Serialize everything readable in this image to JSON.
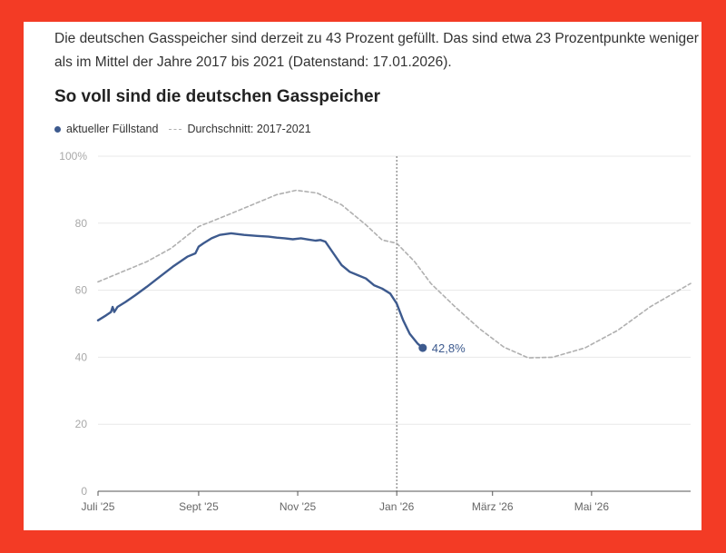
{
  "intro_text": "Die deutschen Gasspeicher sind derzeit zu 43 Prozent gefüllt. Das sind etwa 23 Prozentpunkte weniger als im Mittel der Jahre 2017 bis 2021 (Datenstand: 17.01.2026).",
  "colors": {
    "background": "#f33b25",
    "current": "#3d5a8e",
    "average": "#b0b0b0",
    "grid": "#e8e8e8"
  },
  "chart_data": {
    "type": "line",
    "title": "So voll sind die deutschen Gasspeicher",
    "xlabel": "",
    "ylabel": "",
    "ylim": [
      0,
      100
    ],
    "xlim_days": [
      0,
      365
    ],
    "x_unit": "days since 1 July 2025",
    "yticks": [
      {
        "value": 0,
        "label": "0"
      },
      {
        "value": 20,
        "label": "20"
      },
      {
        "value": 40,
        "label": "40"
      },
      {
        "value": 60,
        "label": "60"
      },
      {
        "value": 80,
        "label": "80"
      },
      {
        "value": 100,
        "label": "100%"
      }
    ],
    "xticks": [
      {
        "value": 0,
        "label": "Juli '25"
      },
      {
        "value": 62,
        "label": "Sept '25"
      },
      {
        "value": 123,
        "label": "Nov '25"
      },
      {
        "value": 184,
        "label": "Jan '26"
      },
      {
        "value": 243,
        "label": "März '26"
      },
      {
        "value": 304,
        "label": "Mai '26"
      }
    ],
    "reference_line_x": 184,
    "series": [
      {
        "name": "aktueller Füllstand",
        "style": "solid",
        "x": [
          0,
          5,
          8,
          9,
          10,
          12,
          17,
          23,
          30,
          38,
          46,
          55,
          60,
          62,
          65,
          70,
          75,
          82,
          90,
          98,
          105,
          110,
          115,
          120,
          125,
          130,
          134,
          137,
          140,
          145,
          150,
          155,
          160,
          165,
          170,
          175,
          180,
          184,
          188,
          192,
          197,
          200
        ],
        "values": [
          51,
          52.5,
          53.5,
          55,
          53.5,
          55,
          56.5,
          58.5,
          61,
          64,
          67,
          70,
          71,
          73,
          74,
          75.5,
          76.5,
          77,
          76.5,
          76.2,
          76,
          75.7,
          75.5,
          75.2,
          75.5,
          75.1,
          74.8,
          75,
          74.5,
          71,
          67.5,
          65.5,
          64.5,
          63.5,
          61.5,
          60.5,
          59,
          56,
          51,
          47,
          44,
          42.8
        ]
      },
      {
        "name": "Durchschnitt: 2017-2021",
        "style": "dashed",
        "x": [
          0,
          15,
          30,
          45,
          62,
          80,
          95,
          110,
          122,
          135,
          150,
          165,
          175,
          184,
          195,
          205,
          220,
          235,
          250,
          265,
          280,
          300,
          320,
          340,
          365
        ],
        "values": [
          62.5,
          65.5,
          68.5,
          72.5,
          79,
          82.5,
          85.5,
          88.5,
          89.8,
          89,
          85.5,
          79.5,
          75,
          74,
          68.5,
          62,
          55,
          48.5,
          43,
          39.8,
          40,
          42.8,
          48,
          55,
          62
        ]
      }
    ],
    "annotations": [
      {
        "x": 200,
        "y": 42.8,
        "label": "42,8%"
      }
    ],
    "legend": {
      "position": "top-left",
      "entries": [
        "aktueller Füllstand",
        "Durchschnitt: 2017-2021"
      ]
    },
    "grid": true
  }
}
